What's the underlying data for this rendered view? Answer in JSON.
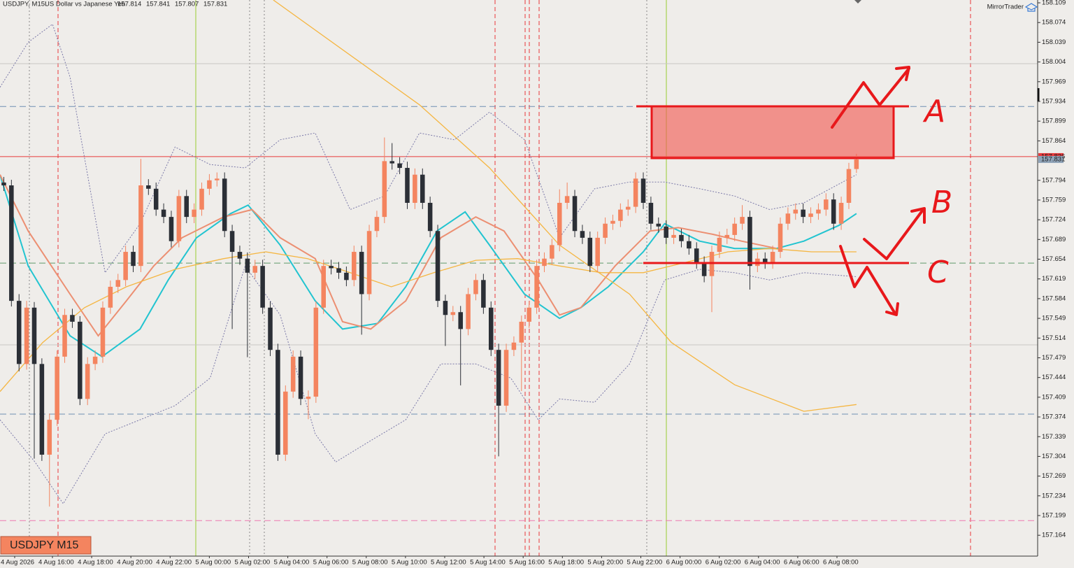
{
  "header": {
    "symbol": "USDJPY, M15:",
    "description": "US Dollar vs Japanese Yen",
    "quote": [
      157.814,
      157.841,
      157.807,
      157.831
    ]
  },
  "brand": "MirrorTrader",
  "badge": "USDJPY M15",
  "chart_data": {
    "type": "candlestick",
    "bull_color": "#f4845f",
    "bear_color": "#2b2f36",
    "xlim": [
      -0.5,
      135.8
    ],
    "ylim": [
      157.127,
      158.114
    ],
    "yticks": [
      158.109,
      158.074,
      158.039,
      158.004,
      157.969,
      157.934,
      157.899,
      157.864,
      157.794,
      157.759,
      157.724,
      157.689,
      157.654,
      157.619,
      157.584,
      157.549,
      157.514,
      157.479,
      157.444,
      157.409,
      157.374,
      157.339,
      157.304,
      157.269,
      157.234,
      157.199,
      157.164
    ],
    "grid": false,
    "time_labels": [
      "4 Aug 2026",
      "4 Aug 16:00",
      "4 Aug 18:00",
      "4 Aug 20:00",
      "4 Aug 22:00",
      "5 Aug 00:00",
      "5 Aug 02:00",
      "5 Aug 04:00",
      "5 Aug 06:00",
      "5 Aug 08:00",
      "5 Aug 10:00",
      "5 Aug 12:00",
      "5 Aug 14:00",
      "5 Aug 16:00",
      "5 Aug 18:00",
      "5 Aug 20:00",
      "5 Aug 22:00",
      "6 Aug 00:00",
      "6 Aug 02:00",
      "6 Aug 04:00",
      "6 Aug 06:00",
      "6 Aug 08:00"
    ],
    "candles": [
      [
        157.79,
        157.8,
        157.775,
        157.785
      ],
      [
        157.785,
        157.795,
        157.57,
        157.58
      ],
      [
        157.58,
        157.592,
        157.455,
        157.468
      ],
      [
        157.468,
        157.58,
        157.458,
        157.568
      ],
      [
        157.568,
        157.578,
        157.3,
        157.468
      ],
      [
        157.468,
        157.478,
        157.296,
        157.307
      ],
      [
        157.307,
        157.38,
        157.215,
        157.369
      ],
      [
        157.369,
        157.492,
        157.358,
        157.481
      ],
      [
        157.481,
        157.566,
        157.47,
        157.555
      ],
      [
        157.555,
        157.566,
        157.532,
        157.543
      ],
      [
        157.543,
        157.553,
        157.395,
        157.406
      ],
      [
        157.406,
        157.48,
        157.395,
        157.468
      ],
      [
        157.468,
        157.492,
        157.457,
        157.481
      ],
      [
        157.481,
        157.579,
        157.47,
        157.568
      ],
      [
        157.568,
        157.616,
        157.557,
        157.605
      ],
      [
        157.605,
        157.628,
        157.594,
        157.617
      ],
      [
        157.617,
        157.678,
        157.606,
        157.667
      ],
      [
        157.667,
        157.678,
        157.631,
        157.642
      ],
      [
        157.642,
        157.832,
        157.631,
        157.785
      ],
      [
        157.785,
        157.796,
        157.768,
        157.779
      ],
      [
        157.779,
        157.79,
        157.731,
        157.742
      ],
      [
        157.742,
        157.753,
        157.718,
        157.729
      ],
      [
        157.729,
        157.74,
        157.675,
        157.686
      ],
      [
        157.686,
        157.777,
        157.675,
        157.766
      ],
      [
        157.766,
        157.777,
        157.718,
        157.729
      ],
      [
        157.729,
        157.753,
        157.718,
        157.742
      ],
      [
        157.742,
        157.79,
        157.731,
        157.779
      ],
      [
        157.779,
        157.805,
        157.768,
        157.794
      ],
      [
        157.794,
        157.808,
        157.783,
        157.797
      ],
      [
        157.797,
        157.808,
        157.693,
        157.704
      ],
      [
        157.704,
        157.715,
        157.53,
        157.667
      ],
      [
        157.667,
        157.678,
        157.644,
        157.655
      ],
      [
        157.655,
        157.666,
        157.48,
        157.63
      ],
      [
        157.63,
        157.653,
        157.619,
        157.642
      ],
      [
        157.642,
        157.653,
        157.557,
        157.568
      ],
      [
        157.568,
        157.579,
        157.482,
        157.493
      ],
      [
        157.493,
        157.504,
        157.296,
        157.307
      ],
      [
        157.307,
        157.43,
        157.296,
        157.419
      ],
      [
        157.419,
        157.492,
        157.408,
        157.481
      ],
      [
        157.481,
        157.492,
        157.395,
        157.406
      ],
      [
        157.406,
        157.421,
        157.37,
        157.41
      ],
      [
        157.41,
        157.579,
        157.399,
        157.568
      ],
      [
        157.568,
        157.653,
        157.557,
        157.642
      ],
      [
        157.642,
        157.653,
        157.627,
        157.638
      ],
      [
        157.638,
        157.649,
        157.619,
        157.63
      ],
      [
        157.63,
        157.641,
        157.606,
        157.617
      ],
      [
        157.617,
        157.678,
        157.606,
        157.667
      ],
      [
        157.667,
        157.678,
        157.52,
        157.592
      ],
      [
        157.592,
        157.715,
        157.581,
        157.704
      ],
      [
        157.704,
        157.74,
        157.693,
        157.729
      ],
      [
        157.729,
        157.87,
        157.718,
        157.828
      ],
      [
        157.828,
        157.86,
        157.813,
        157.824
      ],
      [
        157.824,
        157.835,
        157.805,
        157.816
      ],
      [
        157.816,
        157.827,
        157.743,
        157.754
      ],
      [
        157.754,
        157.815,
        157.743,
        157.804
      ],
      [
        157.804,
        157.815,
        157.743,
        157.754
      ],
      [
        157.754,
        157.765,
        157.693,
        157.704
      ],
      [
        157.704,
        157.715,
        157.569,
        157.58
      ],
      [
        157.58,
        157.591,
        157.5,
        157.555
      ],
      [
        157.555,
        157.571,
        157.544,
        157.56
      ],
      [
        157.56,
        157.571,
        157.43,
        157.53
      ],
      [
        157.53,
        157.603,
        157.519,
        157.592
      ],
      [
        157.592,
        157.628,
        157.581,
        157.617
      ],
      [
        157.617,
        157.628,
        157.557,
        157.568
      ],
      [
        157.568,
        157.579,
        157.482,
        157.493
      ],
      [
        157.493,
        157.504,
        157.304,
        157.394
      ],
      [
        157.394,
        157.504,
        157.383,
        157.493
      ],
      [
        157.493,
        157.517,
        157.482,
        157.506
      ],
      [
        157.506,
        157.554,
        157.42,
        157.543
      ],
      [
        157.543,
        157.579,
        157.532,
        157.568
      ],
      [
        157.568,
        157.653,
        157.557,
        157.642
      ],
      [
        157.642,
        157.666,
        157.631,
        157.655
      ],
      [
        157.655,
        157.69,
        157.644,
        157.679
      ],
      [
        157.679,
        157.778,
        157.668,
        157.754
      ],
      [
        157.754,
        157.79,
        157.743,
        157.766
      ],
      [
        157.766,
        157.777,
        157.693,
        157.704
      ],
      [
        157.704,
        157.715,
        157.681,
        157.692
      ],
      [
        157.692,
        157.703,
        157.631,
        157.642
      ],
      [
        157.642,
        157.703,
        157.631,
        157.692
      ],
      [
        157.692,
        157.728,
        157.681,
        157.717
      ],
      [
        157.717,
        157.733,
        157.706,
        157.722
      ],
      [
        157.722,
        157.753,
        157.711,
        157.742
      ],
      [
        157.742,
        157.76,
        157.731,
        157.747
      ],
      [
        157.747,
        157.808,
        157.736,
        157.797
      ],
      [
        157.797,
        157.808,
        157.743,
        157.754
      ],
      [
        157.754,
        157.765,
        157.706,
        157.717
      ],
      [
        157.717,
        157.728,
        157.701,
        157.712
      ],
      [
        157.712,
        157.723,
        157.681,
        157.692
      ],
      [
        157.692,
        157.708,
        157.681,
        157.697
      ],
      [
        157.697,
        157.708,
        157.675,
        157.686
      ],
      [
        157.686,
        157.697,
        157.662,
        157.673
      ],
      [
        157.673,
        157.684,
        157.637,
        157.648
      ],
      [
        157.648,
        157.659,
        157.613,
        157.624
      ],
      [
        157.624,
        157.678,
        157.56,
        157.667
      ],
      [
        157.667,
        157.703,
        157.656,
        157.692
      ],
      [
        157.692,
        157.708,
        157.681,
        157.697
      ],
      [
        157.697,
        157.728,
        157.686,
        157.717
      ],
      [
        157.717,
        157.75,
        157.706,
        157.729
      ],
      [
        157.729,
        157.74,
        157.6,
        157.642
      ],
      [
        157.642,
        157.666,
        157.631,
        157.655
      ],
      [
        157.655,
        157.666,
        157.637,
        157.648
      ],
      [
        157.648,
        157.678,
        157.637,
        157.667
      ],
      [
        157.667,
        157.728,
        157.656,
        157.717
      ],
      [
        157.717,
        157.746,
        157.706,
        157.735
      ],
      [
        157.735,
        157.753,
        157.724,
        157.742
      ],
      [
        157.742,
        157.753,
        157.718,
        157.729
      ],
      [
        157.729,
        157.746,
        157.718,
        157.735
      ],
      [
        157.735,
        157.753,
        157.724,
        157.742
      ],
      [
        157.742,
        157.771,
        157.731,
        157.76
      ],
      [
        157.76,
        157.771,
        157.706,
        157.717
      ],
      [
        157.717,
        157.765,
        157.706,
        157.754
      ],
      [
        157.754,
        157.825,
        157.743,
        157.814
      ],
      [
        157.814,
        157.841,
        157.807,
        157.831
      ]
    ],
    "lines": [
      {
        "color": "#22c4d0",
        "width": 2,
        "dotted": false,
        "x": [
          -0.5,
          3.2,
          8.7,
          12.9,
          17.9,
          21.6,
          25.3,
          29.8,
          32.1,
          36.3,
          40.9,
          44.5,
          49.1,
          52.8,
          56.9,
          60.6,
          63.8,
          68.4,
          73.0,
          75.8,
          79.4,
          84.0,
          86.8,
          91.4,
          96.0,
          101.5,
          105.1,
          109.7,
          112.0
        ],
        "values": [
          157.804,
          157.642,
          157.518,
          157.481,
          157.53,
          157.617,
          157.692,
          157.735,
          157.75,
          157.679,
          157.58,
          157.53,
          157.54,
          157.605,
          157.704,
          157.738,
          157.679,
          157.592,
          157.549,
          157.568,
          157.605,
          157.667,
          157.717,
          157.686,
          157.673,
          157.673,
          157.686,
          157.714,
          157.735
        ]
      },
      {
        "color": "#ec8f72",
        "width": 2,
        "dotted": false,
        "x": [
          -0.5,
          3.2,
          8.7,
          12.4,
          16.1,
          19.7,
          23.4,
          28.9,
          32.6,
          36.3,
          40.9,
          44.5,
          48.2,
          52.8,
          57.4,
          62.0,
          65.7,
          70.2,
          73.0,
          75.8,
          80.3,
          84.9,
          88.6,
          93.2,
          96.9,
          101.5
        ],
        "values": [
          157.804,
          157.704,
          157.592,
          157.518,
          157.58,
          157.642,
          157.692,
          157.729,
          157.742,
          157.692,
          157.655,
          157.543,
          157.53,
          157.58,
          157.692,
          157.729,
          157.704,
          157.617,
          157.555,
          157.568,
          157.642,
          157.704,
          157.71,
          157.698,
          157.686,
          157.673
        ]
      },
      {
        "color": "#f5b642",
        "width": 1.3,
        "dotted": false,
        "x": [
          -0.5,
          5.1,
          10.6,
          16.1,
          22.5,
          28.9,
          34.4,
          39.9,
          45.5,
          50.9,
          56.5,
          62.0,
          67.5,
          73.0,
          78.5,
          84.0,
          89.5,
          95.1,
          100.6,
          106.1,
          112.0
        ],
        "values": [
          157.419,
          157.506,
          157.568,
          157.605,
          157.636,
          157.655,
          157.667,
          157.655,
          157.63,
          157.605,
          157.63,
          157.652,
          157.655,
          157.642,
          157.63,
          157.63,
          157.648,
          157.667,
          157.673,
          157.667,
          157.667
        ]
      },
      {
        "color": "#f5b642",
        "width": 1.3,
        "dotted": false,
        "x": [
          35.4,
          54.6,
          63.8,
          73.0,
          82.2,
          87.7,
          96.0,
          105.1,
          112.0
        ],
        "values": [
          158.114,
          157.928,
          157.816,
          157.679,
          157.592,
          157.506,
          157.431,
          157.384,
          157.396
        ]
      },
      {
        "color": "#7a78a8",
        "width": 1,
        "dotted": true,
        "x": [
          -0.5,
          3.2,
          6.4,
          8.7,
          13.3,
          17.9,
          22.5,
          27.1,
          31.7,
          36.3,
          40.9,
          45.5,
          50.0,
          54.6,
          59.2,
          63.8,
          68.4,
          73.0,
          77.6,
          82.2,
          86.8,
          91.4,
          96.0,
          100.6,
          105.1,
          112.0
        ],
        "values": [
          157.959,
          158.039,
          158.071,
          157.977,
          157.63,
          157.717,
          157.853,
          157.822,
          157.816,
          157.866,
          157.878,
          157.742,
          157.766,
          157.878,
          157.866,
          157.915,
          157.866,
          157.692,
          157.779,
          157.791,
          157.791,
          157.779,
          157.766,
          157.742,
          157.754,
          157.804
        ]
      },
      {
        "color": "#7a78a8",
        "width": 1,
        "dotted": true,
        "x": [
          -0.5,
          4.1,
          7.8,
          13.3,
          17.9,
          22.5,
          27.1,
          31.7,
          36.3,
          40.9,
          43.6,
          48.2,
          52.8,
          57.4,
          62.0,
          66.6,
          70.2,
          73.0,
          77.6,
          82.2,
          86.8,
          91.4,
          96.0,
          100.6,
          105.1,
          112.0
        ],
        "values": [
          157.369,
          157.294,
          157.22,
          157.344,
          157.369,
          157.394,
          157.443,
          157.642,
          157.555,
          157.344,
          157.294,
          157.332,
          157.369,
          157.468,
          157.468,
          157.443,
          157.369,
          157.406,
          157.4,
          157.468,
          157.617,
          157.636,
          157.63,
          157.617,
          157.63,
          157.623
        ]
      }
    ],
    "levels": [
      {
        "value": 158.001,
        "color": "#c8c8c4",
        "dashed": false
      },
      {
        "value": 157.925,
        "color": "#6f8fb3",
        "dashed": true
      },
      {
        "value": 157.836,
        "color": "#e8383a",
        "dashed": false
      },
      {
        "value": 157.647,
        "color": "#5f9a6a",
        "dashed": true
      },
      {
        "value": 157.502,
        "color": "#c8c8c4",
        "dashed": false
      },
      {
        "value": 157.379,
        "color": "#6f8fb3",
        "dashed": true
      },
      {
        "value": 157.19,
        "color": "#ee7ab0",
        "dashed": true
      }
    ],
    "price_tags": [
      {
        "value": 157.836,
        "color": "#e8383a"
      },
      {
        "value": 157.831,
        "color": "#8fa3b8"
      }
    ],
    "annotations": [
      "A",
      "B",
      "C"
    ]
  }
}
